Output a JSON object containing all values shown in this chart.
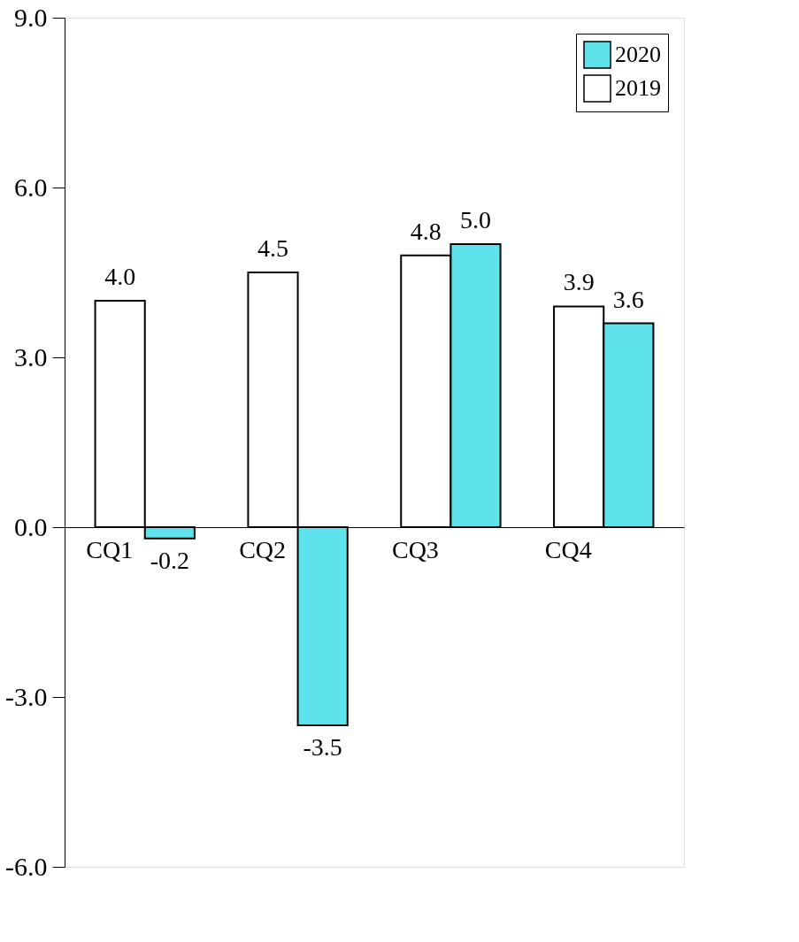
{
  "chart_data": {
    "type": "bar",
    "categories": [
      "CQ1",
      "CQ2",
      "CQ3",
      "CQ4"
    ],
    "series": [
      {
        "name": "2019",
        "color": "#ffffff",
        "values": [
          4.0,
          4.5,
          4.8,
          3.9
        ],
        "value_labels": [
          "4.0",
          "4.5",
          "4.8",
          "3.9"
        ]
      },
      {
        "name": "2020",
        "color": "#5ee3ec",
        "values": [
          -0.2,
          -3.5,
          5.0,
          3.6
        ],
        "value_labels": [
          "-0.2",
          "-3.5",
          "5.0",
          "3.6"
        ]
      }
    ],
    "ylim": [
      -6,
      9
    ],
    "yticks": [
      {
        "value": -6,
        "label": "-6.0"
      },
      {
        "value": -3,
        "label": "-3.0"
      },
      {
        "value": 0,
        "label": "0.0"
      },
      {
        "value": 3,
        "label": "3.0"
      },
      {
        "value": 6,
        "label": "6.0"
      },
      {
        "value": 9,
        "label": "9.0"
      }
    ],
    "grid": false,
    "legend": "top right"
  }
}
